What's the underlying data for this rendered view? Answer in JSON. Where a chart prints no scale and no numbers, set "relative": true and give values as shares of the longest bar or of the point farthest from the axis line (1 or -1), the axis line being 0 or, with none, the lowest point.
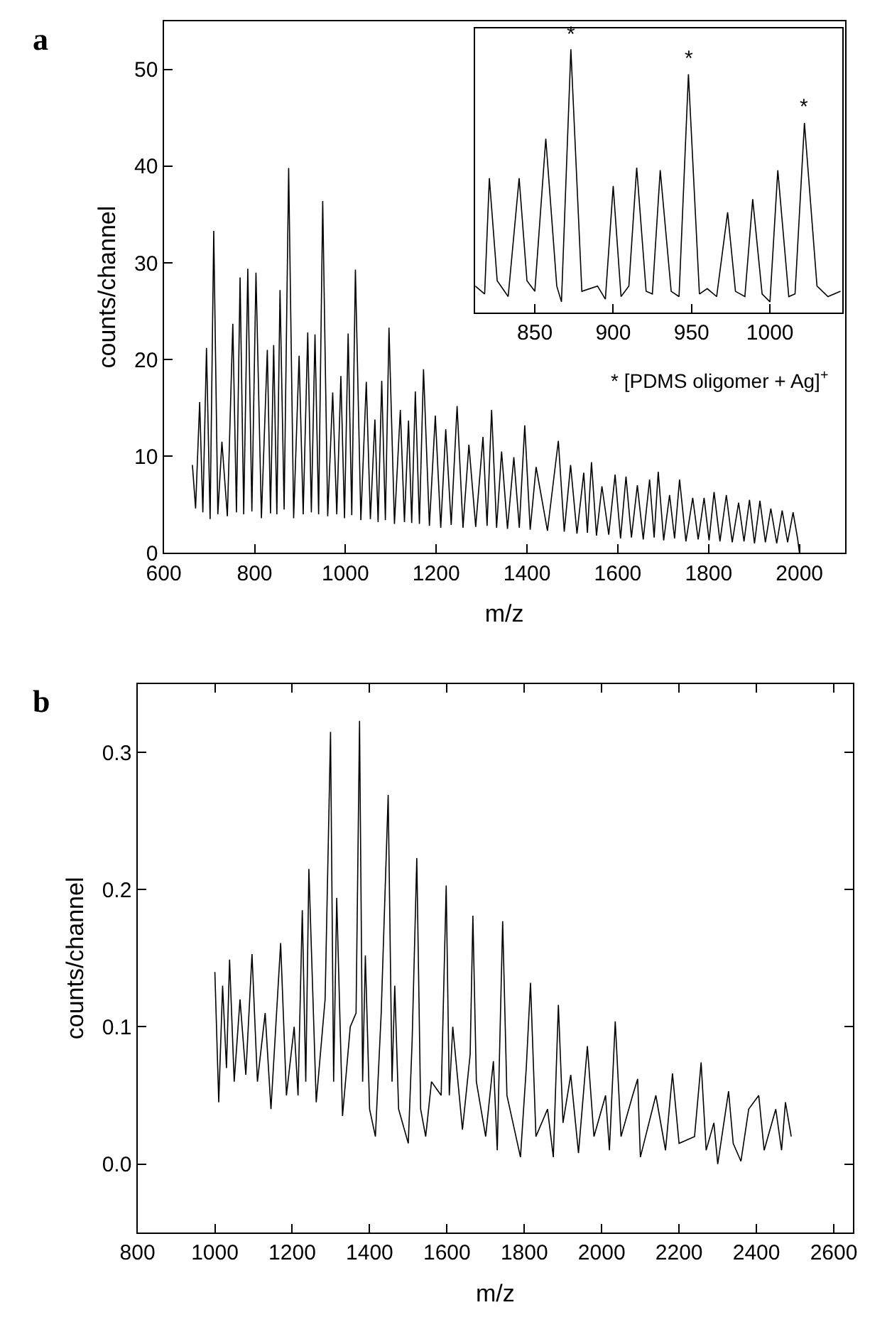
{
  "chart_data": [
    {
      "type": "line",
      "title": "a",
      "xlabel": "m/z",
      "ylabel": "counts/channel",
      "xlim": [
        600,
        2100
      ],
      "xticks": [
        600,
        800,
        1000,
        1200,
        1400,
        1600,
        1800,
        2000
      ],
      "ylim": [
        0,
        55
      ],
      "yticks": [
        0,
        10,
        20,
        30,
        40,
        50
      ],
      "marker": "none",
      "line_style": "solid",
      "annotations": [
        "* [PDMS oligomer + Ag]$^{+}$"
      ],
      "series": [
        {
          "color": "#000000",
          "x": [
            663,
            670,
            679,
            686,
            694,
            702,
            710,
            719,
            728,
            740,
            752,
            760,
            768,
            776,
            785,
            794,
            803,
            815,
            828,
            835,
            842,
            849,
            856,
            865,
            875,
            886,
            898,
            907,
            917,
            925,
            933,
            941,
            950,
            961,
            972,
            981,
            990,
            998,
            1006,
            1014,
            1022,
            1034,
            1046,
            1055,
            1065,
            1072,
            1080,
            1088,
            1096,
            1108,
            1121,
            1130,
            1139,
            1146,
            1154,
            1163,
            1172,
            1185,
            1198,
            1210,
            1221,
            1233,
            1246,
            1259,
            1272,
            1287,
            1303,
            1312,
            1322,
            1333,
            1344,
            1357,
            1371,
            1383,
            1395,
            1407,
            1420,
            1445,
            1469,
            1482,
            1496,
            1510,
            1525,
            1533,
            1542,
            1553,
            1565,
            1580,
            1594,
            1606,
            1618,
            1630,
            1643,
            1656,
            1670,
            1680,
            1689,
            1701,
            1714,
            1725,
            1736,
            1750,
            1765,
            1777,
            1790,
            1801,
            1812,
            1825,
            1839,
            1852,
            1866,
            1878,
            1890,
            1901,
            1913,
            1925,
            1937,
            1950,
            1962,
            1974,
            1986,
            1996,
            2000
          ],
          "values": [
            9.1,
            4.6,
            15.6,
            4.2,
            21.2,
            3.5,
            33.3,
            4.0,
            11.5,
            3.8,
            23.7,
            4.2,
            28.5,
            4.0,
            29.4,
            4.3,
            29.0,
            3.6,
            21.0,
            4.1,
            21.5,
            4.0,
            27.2,
            4.5,
            39.8,
            3.6,
            20.4,
            4.0,
            22.8,
            4.2,
            22.6,
            4.0,
            36.4,
            3.8,
            16.6,
            4.0,
            18.3,
            3.6,
            22.7,
            3.9,
            29.3,
            3.4,
            17.7,
            3.5,
            13.8,
            3.2,
            17.8,
            3.4,
            23.3,
            3.0,
            14.8,
            3.2,
            13.7,
            3.1,
            16.7,
            3.0,
            19.0,
            2.8,
            14.2,
            2.6,
            12.8,
            2.9,
            15.2,
            2.6,
            11.2,
            2.7,
            12.0,
            2.8,
            14.8,
            2.6,
            10.5,
            2.5,
            9.9,
            2.6,
            13.2,
            2.4,
            8.9,
            2.3,
            11.6,
            2.2,
            9.1,
            2.0,
            8.3,
            2.1,
            9.4,
            1.8,
            6.9,
            1.9,
            8.1,
            1.5,
            7.9,
            1.6,
            7.0,
            1.4,
            7.6,
            1.6,
            8.4,
            1.3,
            6.0,
            1.5,
            7.6,
            1.2,
            5.7,
            1.4,
            5.7,
            1.3,
            6.3,
            1.2,
            6.0,
            1.1,
            5.2,
            1.2,
            5.5,
            1.0,
            5.4,
            1.1,
            4.6,
            1.0,
            4.4,
            1.1,
            4.2,
            1.5,
            0
          ]
        }
      ]
    },
    {
      "type": "line",
      "relative": true,
      "xlim": [
        812,
        1046
      ],
      "xticks": [
        850,
        900,
        950,
        1000
      ],
      "tick_labels": "x",
      "marker": "none",
      "line_style": "solid",
      "annotations": [
        {
          "text": "*",
          "x": 873,
          "y": 1.0
        },
        {
          "text": "*",
          "x": 948,
          "y": 0.905
        },
        {
          "text": "*",
          "x": 1022,
          "y": 0.72
        }
      ],
      "series": [
        {
          "color": "#000000",
          "x": [
            812,
            818,
            821,
            826,
            833,
            840,
            845,
            850,
            857,
            864,
            867,
            873,
            880,
            890,
            895,
            900,
            905,
            910,
            915,
            921,
            925,
            930,
            937,
            942,
            948,
            955,
            960,
            966,
            973,
            978,
            984,
            989,
            995,
            1000,
            1005,
            1012,
            1016,
            1022,
            1030,
            1037,
            1045
          ],
          "values": [
            0.1,
            0.07,
            0.51,
            0.12,
            0.06,
            0.51,
            0.12,
            0.08,
            0.66,
            0.1,
            0.04,
            1.0,
            0.08,
            0.1,
            0.05,
            0.48,
            0.06,
            0.1,
            0.55,
            0.08,
            0.07,
            0.54,
            0.08,
            0.06,
            0.905,
            0.07,
            0.09,
            0.06,
            0.38,
            0.08,
            0.06,
            0.43,
            0.07,
            0.04,
            0.54,
            0.06,
            0.07,
            0.72,
            0.1,
            0.06,
            0.08
          ]
        }
      ]
    },
    {
      "type": "line",
      "title": "b",
      "xlabel": "m/z",
      "ylabel": "counts/channel",
      "xlim": [
        800,
        2650
      ],
      "xticks": [
        800,
        1000,
        1200,
        1400,
        1600,
        1800,
        2000,
        2200,
        2400,
        2600
      ],
      "ylim": [
        -0.05,
        0.35
      ],
      "yticks": [
        {
          "value": 0,
          "label": "0.0"
        },
        0.1,
        0.2,
        0.3
      ],
      "marker": "none",
      "line_style": "solid",
      "series": [
        {
          "color": "#000000",
          "x": [
            1000,
            1010,
            1020,
            1030,
            1038,
            1050,
            1065,
            1080,
            1096,
            1110,
            1130,
            1145,
            1170,
            1185,
            1205,
            1215,
            1226,
            1235,
            1243,
            1262,
            1285,
            1299,
            1307,
            1315,
            1330,
            1350,
            1365,
            1374,
            1382,
            1389,
            1400,
            1415,
            1430,
            1448,
            1458,
            1465,
            1475,
            1500,
            1510,
            1522,
            1532,
            1545,
            1560,
            1585,
            1598,
            1606,
            1615,
            1640,
            1660,
            1667,
            1676,
            1700,
            1720,
            1730,
            1744,
            1755,
            1790,
            1805,
            1816,
            1830,
            1860,
            1875,
            1888,
            1900,
            1920,
            1940,
            1963,
            1980,
            2010,
            2020,
            2035,
            2050,
            2080,
            2093,
            2100,
            2140,
            2165,
            2183,
            2200,
            2240,
            2257,
            2270,
            2290,
            2300,
            2328,
            2340,
            2360,
            2380,
            2406,
            2420,
            2450,
            2465,
            2475,
            2490
          ],
          "values": [
            0.14,
            0.045,
            0.13,
            0.07,
            0.149,
            0.06,
            0.12,
            0.065,
            0.153,
            0.06,
            0.11,
            0.04,
            0.161,
            0.05,
            0.1,
            0.05,
            0.185,
            0.06,
            0.215,
            0.045,
            0.12,
            0.315,
            0.06,
            0.194,
            0.035,
            0.1,
            0.11,
            0.323,
            0.06,
            0.152,
            0.04,
            0.02,
            0.11,
            0.269,
            0.06,
            0.13,
            0.04,
            0.015,
            0.09,
            0.223,
            0.04,
            0.02,
            0.06,
            0.05,
            0.203,
            0.05,
            0.1,
            0.025,
            0.08,
            0.181,
            0.06,
            0.02,
            0.075,
            0.01,
            0.177,
            0.05,
            0.005,
            0.07,
            0.132,
            0.02,
            0.04,
            0.005,
            0.116,
            0.03,
            0.065,
            0.008,
            0.086,
            0.02,
            0.05,
            0.01,
            0.104,
            0.02,
            0.05,
            0.062,
            0.005,
            0.05,
            0.01,
            0.066,
            0.015,
            0.02,
            0.074,
            0.01,
            0.03,
            0.0,
            0.053,
            0.015,
            0.002,
            0.04,
            0.05,
            0.01,
            0.04,
            0.01,
            0.045,
            0.02
          ]
        }
      ]
    }
  ]
}
